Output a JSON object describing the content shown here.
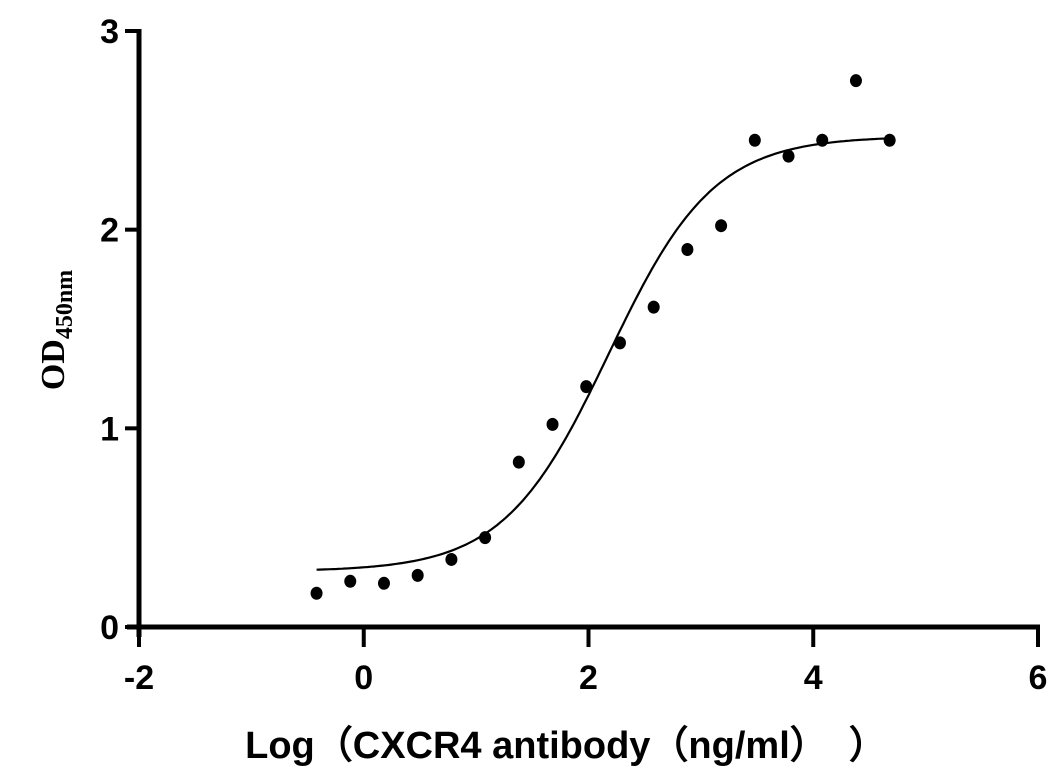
{
  "chart_data": {
    "type": "scatter",
    "title": "",
    "xlabel": "Log（CXCR4 antibody（ng/ml）  ）",
    "ylabel": "OD",
    "ylabel_subscript": "450nm",
    "xlim": [
      -2,
      6
    ],
    "ylim": [
      0,
      3
    ],
    "xticks": [
      "-2",
      "0",
      "2",
      "4",
      "6"
    ],
    "yticks": [
      "0",
      "1",
      "2",
      "3"
    ],
    "grid": false,
    "colors": {
      "points": "#000000",
      "curve": "#000000",
      "axes": "#000000"
    },
    "points": {
      "x": [
        -0.42,
        -0.12,
        0.18,
        0.48,
        0.78,
        1.08,
        1.38,
        1.68,
        1.98,
        2.28,
        2.58,
        2.88,
        3.18,
        3.48,
        3.78,
        4.08,
        4.38,
        4.68
      ],
      "y": [
        0.17,
        0.23,
        0.22,
        0.26,
        0.34,
        0.45,
        0.83,
        1.02,
        1.21,
        1.43,
        1.61,
        1.9,
        2.02,
        2.45,
        2.37,
        2.45,
        2.75,
        2.45
      ]
    },
    "fit_curve": {
      "model": "four-parameter logistic",
      "bottom": 0.28,
      "top": 2.47,
      "logEC50": 2.18,
      "hill_slope": 0.93,
      "x_range": [
        -0.42,
        4.68
      ]
    }
  }
}
